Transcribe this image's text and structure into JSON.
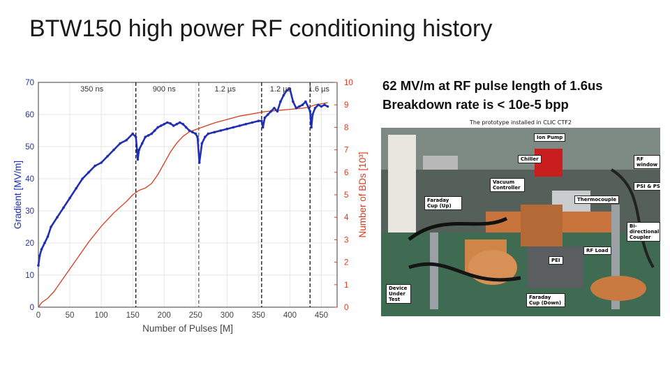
{
  "slide": {
    "title": "BTW150 high power RF conditioning history",
    "bullet_1": "62 MV/m at RF pulse length of 1.6us",
    "bullet_2": "Breakdown rate is < 10e-5 bpp",
    "caption": "The prototype installed in CLIC CTF2"
  },
  "photo": {
    "labels": [
      "Ion Pump",
      "Chiller",
      "RF window",
      "Vacuum Controller",
      "PSI & PSR",
      "Faraday Cup (Up)",
      "Thermocouple",
      "Bi-directional Coupler",
      "RF Load",
      "PEI",
      "Device Under Test",
      "Faraday Cup (Down)"
    ]
  },
  "chart_data": {
    "type": "line",
    "xlabel": "Number of Pulses [M]",
    "ylabel": "Gradient [MV/m]",
    "ylabel_right": "Number of BDs [10³]",
    "xlim": [
      0,
      475
    ],
    "ylim": [
      0,
      70
    ],
    "ylim_right": [
      0,
      10
    ],
    "x_ticks": [
      "0",
      "50",
      "100",
      "150",
      "200",
      "250",
      "300",
      "350",
      "400",
      "450"
    ],
    "y_ticks": [
      "0",
      "10",
      "20",
      "30",
      "40",
      "50",
      "60",
      "70"
    ],
    "y_right_ticks": [
      "0",
      "1",
      "2",
      "3",
      "4",
      "5",
      "6",
      "7",
      "8",
      "9",
      "10"
    ],
    "pulse_length_markers": [
      155,
      255,
      355,
      432
    ],
    "pulse_length_labels": [
      {
        "text": "350 ns",
        "x": 85
      },
      {
        "text": "900 ns",
        "x": 200
      },
      {
        "text": "1.2 µs",
        "x": 297
      },
      {
        "text": "1.2 µs",
        "x": 385
      },
      {
        "text": "1.6 µs",
        "x": 446
      }
    ],
    "gradient_color": "#1f2fb5",
    "bd_color": "#d93a1e",
    "series": [
      {
        "axis": "left",
        "x": [
          0,
          2,
          5,
          10,
          15,
          20,
          30,
          40,
          50,
          60,
          70,
          80,
          90,
          100,
          110,
          120,
          130,
          140,
          150,
          155,
          158,
          160,
          165,
          170,
          175,
          180,
          185,
          190,
          195,
          200,
          205,
          210,
          215,
          220,
          225,
          230,
          235,
          240,
          245,
          250,
          253,
          256,
          260,
          265,
          270,
          280,
          290,
          300,
          310,
          320,
          330,
          340,
          350,
          355,
          357,
          360,
          365,
          370,
          375,
          380,
          385,
          390,
          395,
          400,
          405,
          410,
          415,
          420,
          425,
          430,
          432,
          434,
          436,
          440,
          445,
          450,
          455,
          460
        ],
        "values": [
          13,
          16,
          18,
          20,
          22,
          25,
          28,
          31,
          34,
          37,
          40,
          42,
          44,
          45,
          47,
          49,
          51,
          52,
          54,
          53,
          46,
          49,
          51,
          53,
          53.5,
          54,
          55,
          56,
          56.5,
          57,
          57.5,
          57.2,
          56.5,
          57,
          57.5,
          57,
          56,
          55,
          54.5,
          54,
          53,
          45,
          51,
          53,
          54,
          54.5,
          55,
          55.5,
          56,
          56.5,
          57,
          57.5,
          58,
          58,
          56,
          59,
          60,
          61,
          62,
          61,
          64,
          66,
          67.5,
          68,
          64,
          62,
          62.5,
          63,
          64,
          62,
          61,
          56,
          60,
          62,
          63,
          62.5,
          63,
          62.5
        ]
      },
      {
        "axis": "right",
        "x": [
          0,
          5,
          15,
          25,
          40,
          60,
          80,
          100,
          120,
          140,
          150,
          160,
          170,
          180,
          190,
          200,
          210,
          220,
          230,
          240,
          250,
          260,
          280,
          300,
          320,
          340,
          350,
          360,
          380,
          400,
          420,
          430,
          440,
          450,
          460
        ],
        "values": [
          0,
          0.2,
          0.4,
          0.7,
          1.3,
          2.1,
          2.9,
          3.6,
          4.2,
          4.7,
          5.0,
          5.2,
          5.3,
          5.5,
          5.9,
          6.4,
          6.9,
          7.3,
          7.6,
          7.8,
          7.9,
          8.0,
          8.2,
          8.35,
          8.5,
          8.6,
          8.65,
          8.7,
          8.75,
          8.8,
          8.85,
          8.9,
          9.0,
          9.05,
          9.1
        ]
      }
    ]
  }
}
